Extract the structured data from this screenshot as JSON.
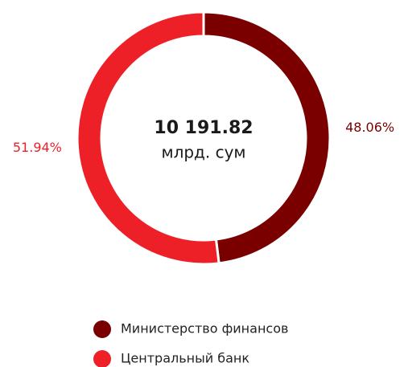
{
  "chart_data": {
    "type": "donut",
    "center_text": "10 191.82",
    "center_subtext": "млрд. сум",
    "categories": [
      "Министерство финансов",
      "Центральный банк"
    ],
    "values": [
      48.06,
      51.94
    ],
    "value_labels": [
      "48.06%",
      "51.94%"
    ],
    "colors": [
      "#7a0000",
      "#ee2027"
    ],
    "legend": "bottom"
  }
}
